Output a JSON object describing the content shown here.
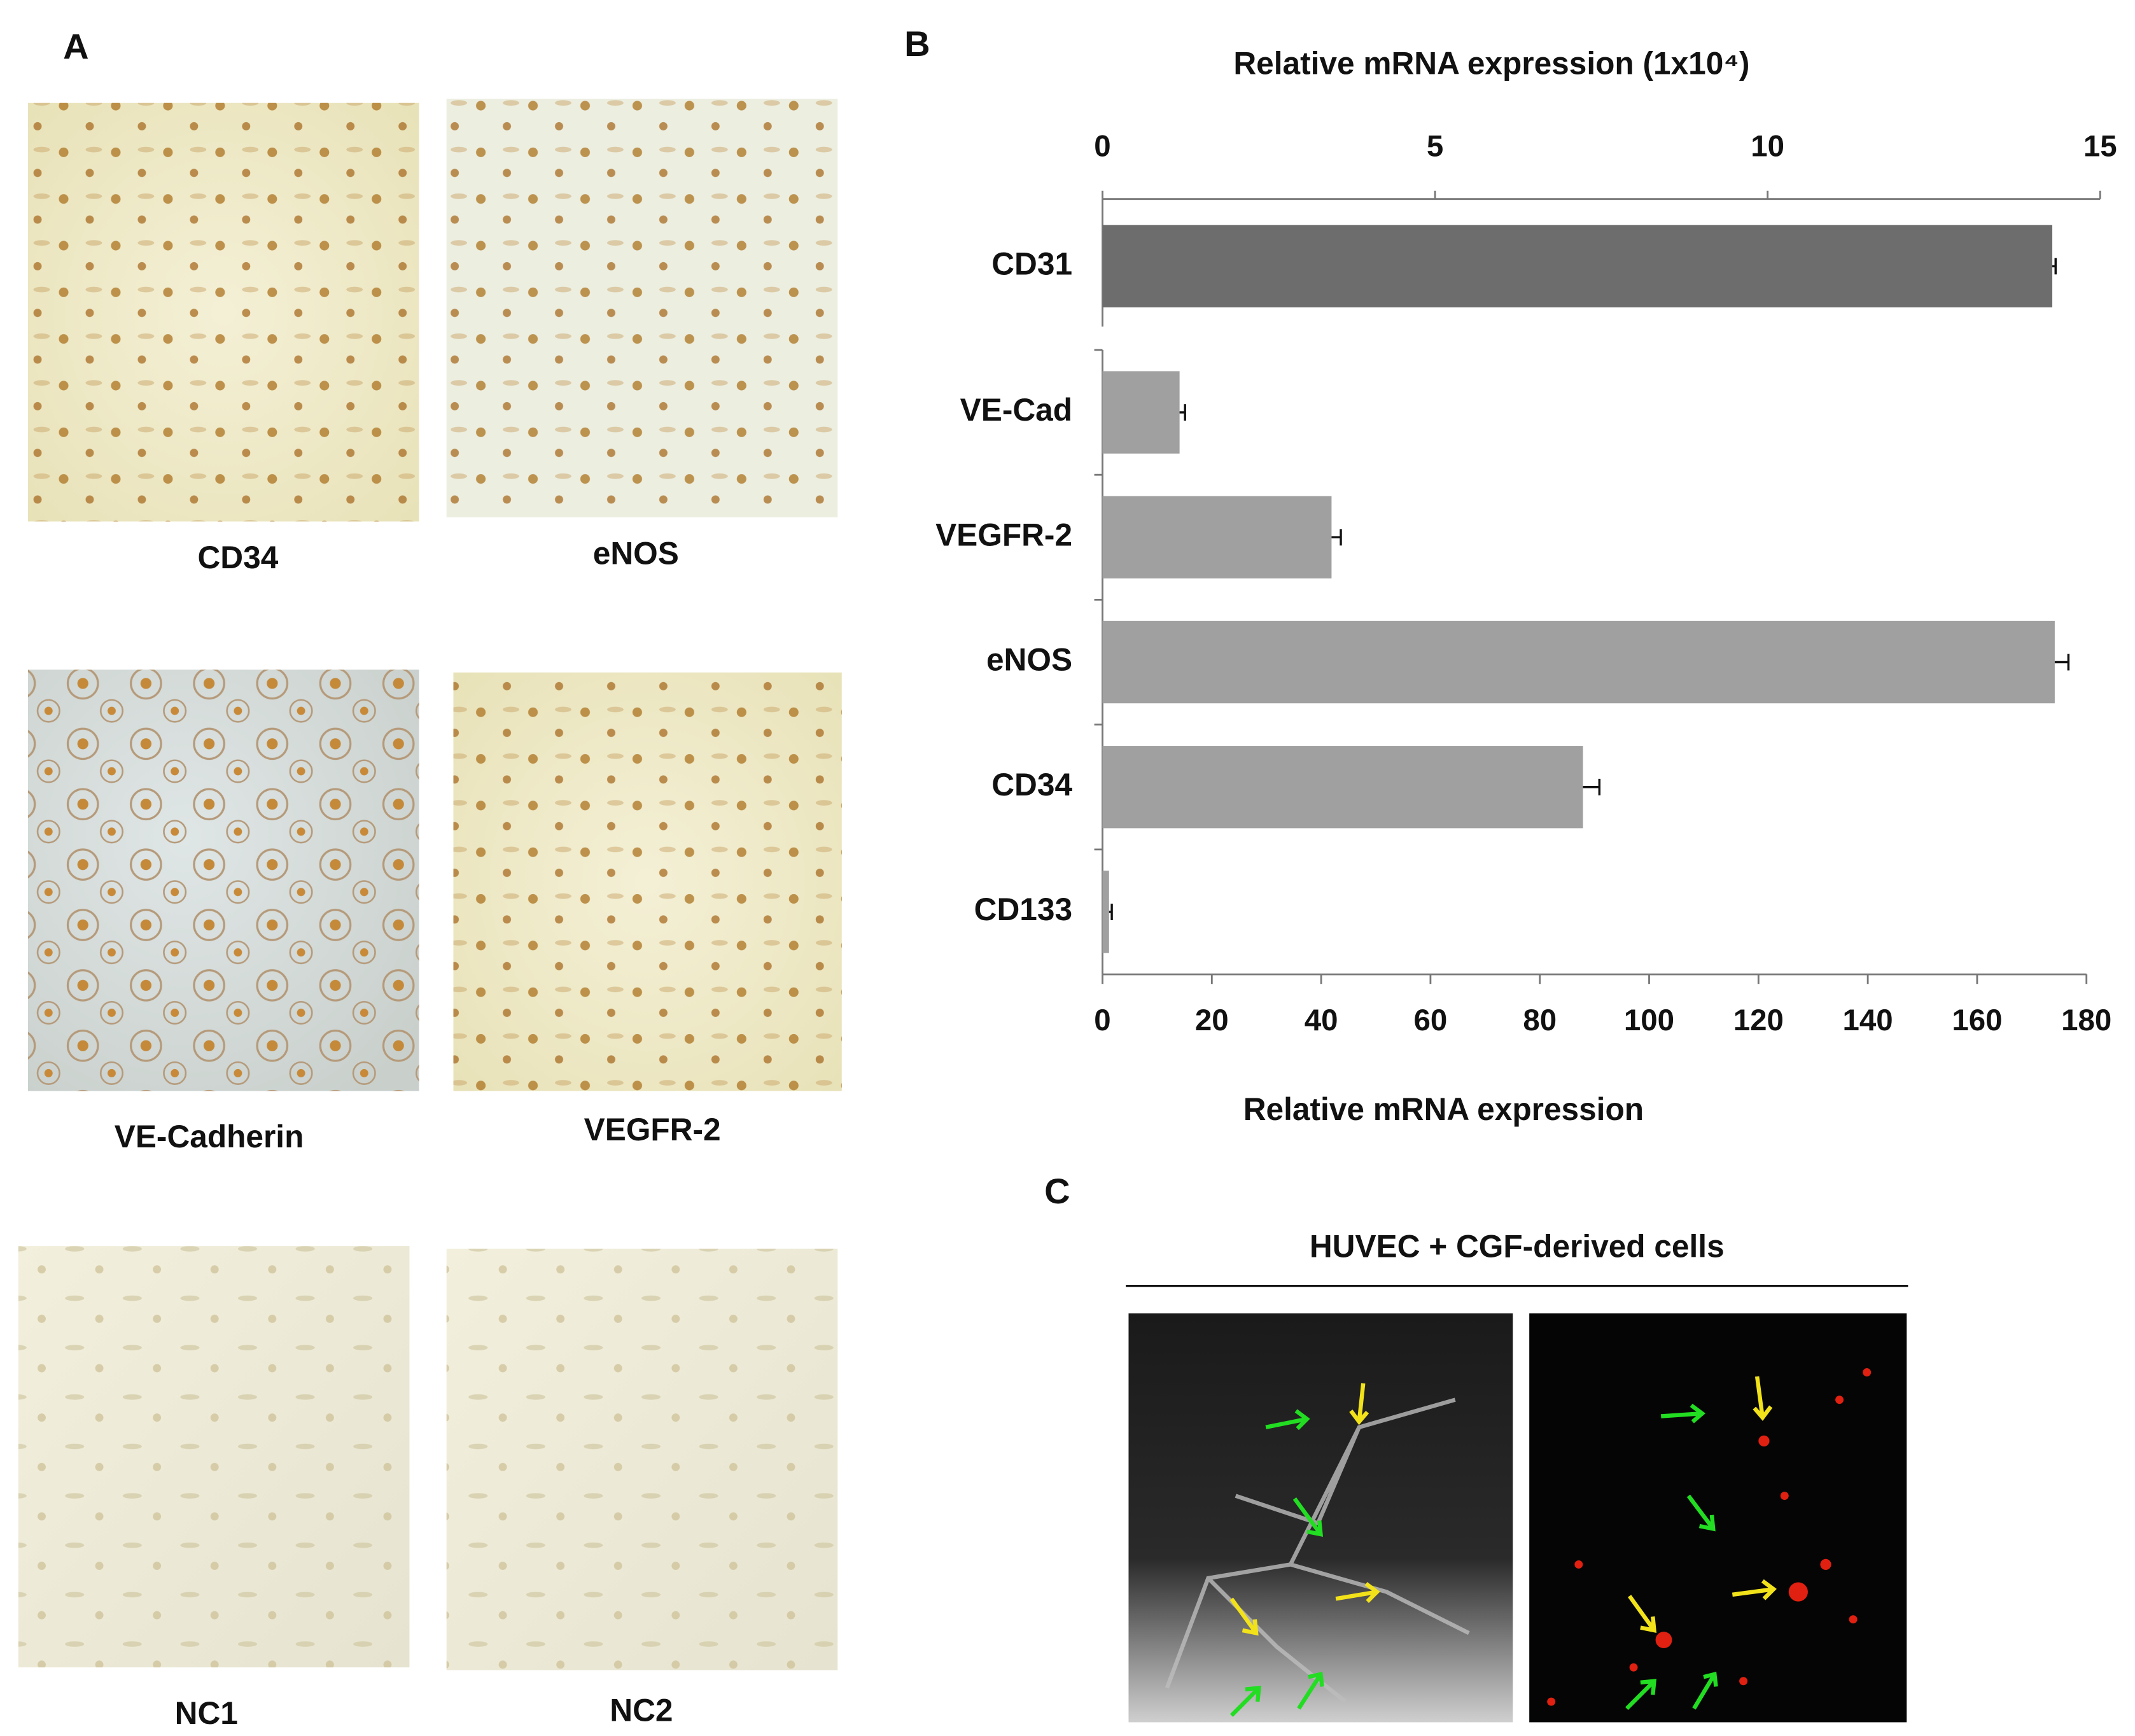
{
  "chart_data": [
    {
      "type": "bar",
      "orientation": "horizontal",
      "axis_position": "top",
      "xlabel": "Relative mRNA expression (1x10⁴)",
      "categories": [
        "CD31"
      ],
      "values": [
        14.28
      ],
      "errors": [
        0.05
      ],
      "color": "#6d6d6d",
      "xlim": [
        0,
        15
      ],
      "xticks": [
        0,
        5,
        10,
        15
      ]
    },
    {
      "type": "bar",
      "orientation": "horizontal",
      "axis_position": "bottom",
      "xlabel": "Relative mRNA expression",
      "categories": [
        "VE-Cad",
        "VEGFR-2",
        "eNOS",
        "CD34",
        "CD133"
      ],
      "values": [
        14.1,
        41.9,
        174.2,
        87.9,
        1.2
      ],
      "errors": [
        1.0,
        1.7,
        2.5,
        3,
        0.5
      ],
      "color": "#a0a0a0",
      "xlim": [
        0,
        180
      ],
      "xticks": [
        0,
        20,
        40,
        60,
        80,
        100,
        120,
        140,
        160,
        180
      ]
    }
  ],
  "figure": {
    "panel_a": {
      "letter": "A",
      "captions": [
        "CD34",
        "eNOS",
        "VE-Cadherin",
        "VEGFR-2",
        "NC1",
        "NC2"
      ]
    },
    "panel_b": {
      "letter": "B"
    },
    "panel_c": {
      "letter": "C",
      "title": "HUVEC + CGF-derived cells"
    }
  }
}
